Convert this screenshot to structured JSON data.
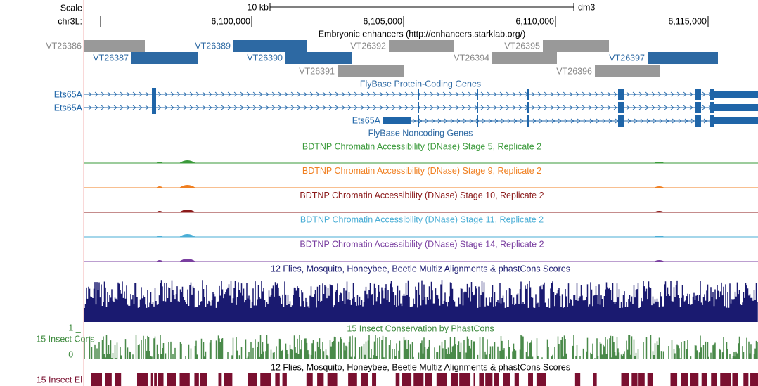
{
  "header": {
    "scale_label": "Scale",
    "scale_bar_label": "10 kb",
    "assembly": "dm3",
    "chrom_label": "chr3L:",
    "ruler_ticks": [
      "6,100,000",
      "6,105,000",
      "6,110,000",
      "6,115,000"
    ]
  },
  "enhancer_track": {
    "title": "Embryonic enhancers (http://enhancers.starklab.org/)",
    "items": [
      "VT26386",
      "VT26387",
      "VT26389",
      "VT26390",
      "VT26391",
      "VT26392",
      "VT26394",
      "VT26395",
      "VT26396",
      "VT26397"
    ]
  },
  "gene_track": {
    "title": "FlyBase Protein-Coding Genes",
    "genes": [
      "Ets65A",
      "Ets65A",
      "Ets65A"
    ]
  },
  "noncoding_track": {
    "title": "FlyBase Noncoding Genes"
  },
  "dnase_tracks": [
    "BDTNP Chromatin Accessibility (DNase) Stage 5, Replicate 2",
    "BDTNP Chromatin Accessibility (DNase) Stage 9, Replicate 2",
    "BDTNP Chromatin Accessibility (DNase) Stage 10, Replicate 2",
    "BDTNP Chromatin Accessibility (DNase) Stage 11, Replicate 2",
    "BDTNP Chromatin Accessibility (DNase) Stage 14, Replicate 2"
  ],
  "multiz_track": {
    "title": "12 Flies, Mosquito, Honeybee, Beetle Multiz Alignments & phastCons Scores"
  },
  "cons_track": {
    "title": "15 Insect Conservation by PhastCons",
    "side_label": "15 Insect Cons",
    "axis_max": "1 _",
    "axis_min": "0 _"
  },
  "elements_track": {
    "title": "12 Flies, Mosquito, Honeybee, Beetle Multiz Alignments & phastCons Scores",
    "side_label": "15 Insect El"
  }
}
